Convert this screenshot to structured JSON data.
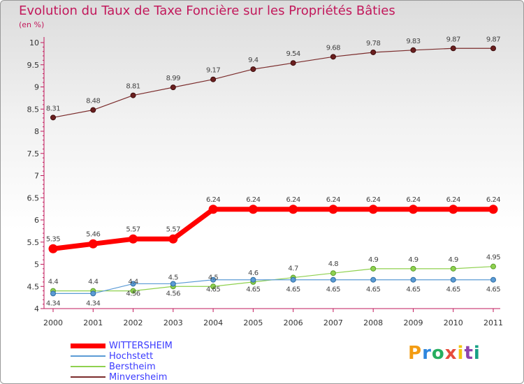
{
  "title": "Evolution du Taux de Taxe Foncière sur les Propriétés Bâties",
  "subtitle": "(en %)",
  "logo": {
    "text": "Proxiti",
    "letter_colors": [
      "#f39c12",
      "#2e86de",
      "#27ae60",
      "#e74c3c",
      "#f1c40f",
      "#8e44ad",
      "#16a085"
    ]
  },
  "chart_data": {
    "type": "line",
    "x": [
      "2000",
      "2001",
      "2002",
      "2003",
      "2004",
      "2005",
      "2006",
      "2007",
      "2008",
      "2009",
      "2010",
      "2011"
    ],
    "ylim": [
      4,
      10
    ],
    "yticks": [
      "4",
      "4.5",
      "5",
      "5.5",
      "6",
      "6.5",
      "7",
      "7.5",
      "8",
      "8.5",
      "9",
      "9.5",
      "10"
    ],
    "xlabel": "",
    "ylabel": "",
    "grid": false,
    "legend_position": "bottom-left",
    "series": [
      {
        "name": "WITTERSHEIM",
        "color": "#ff0000",
        "values": [
          5.35,
          5.46,
          5.57,
          5.57,
          6.24,
          6.24,
          6.24,
          6.24,
          6.24,
          6.24,
          6.24,
          6.24
        ],
        "labels": [
          "5.35",
          "5.46",
          "5.57",
          "5.57",
          "6.24",
          "6.24",
          "6.24",
          "6.24",
          "6.24",
          "6.24",
          "6.24",
          "6.24"
        ]
      },
      {
        "name": "Hochstett",
        "color": "#5b9bd5",
        "values": [
          4.34,
          4.34,
          4.56,
          4.56,
          4.65,
          4.65,
          4.65,
          4.65,
          4.65,
          4.65,
          4.65,
          4.65
        ],
        "labels": [
          "4.34",
          "4.34",
          "4.56",
          "4.56",
          "4.65",
          "4.65",
          "4.65",
          "4.65",
          "4.65",
          "4.65",
          "4.65",
          "4.65"
        ]
      },
      {
        "name": "Berstheim",
        "color": "#8fd14f",
        "values": [
          4.4,
          4.4,
          4.4,
          4.5,
          4.5,
          4.6,
          4.7,
          4.8,
          4.9,
          4.9,
          4.9,
          4.95
        ],
        "labels": [
          "4.4",
          "4.4",
          "4.4",
          "4.5",
          "4.5",
          "4.6",
          "4.7",
          "4.8",
          "4.9",
          "4.9",
          "4.9",
          "4.95"
        ]
      },
      {
        "name": "Minversheim",
        "color": "#7b2c2c",
        "values": [
          8.31,
          8.48,
          8.81,
          8.99,
          9.17,
          9.4,
          9.54,
          9.68,
          9.78,
          9.83,
          9.87,
          9.87
        ],
        "labels": [
          "8.31",
          "8.48",
          "8.81",
          "8.99",
          "9.17",
          "9.4",
          "9.54",
          "9.68",
          "9.78",
          "9.83",
          "9.87",
          "9.87"
        ]
      }
    ]
  }
}
